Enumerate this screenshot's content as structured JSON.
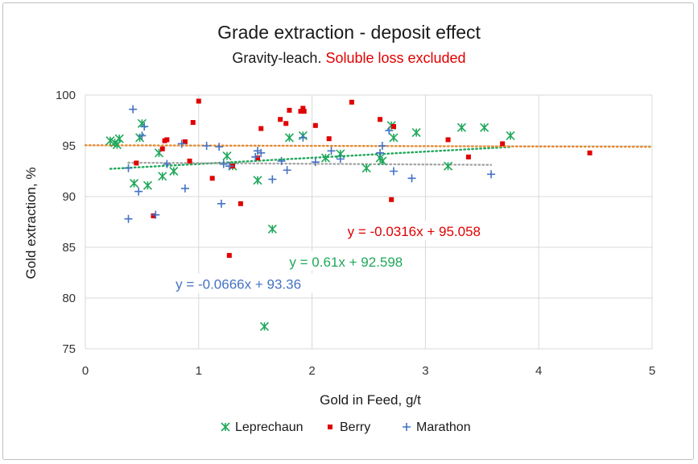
{
  "chart_data": {
    "type": "scatter",
    "title": "Grade extraction - deposit effect",
    "subtitle_prefix": "Gravity-leach. ",
    "subtitle_highlight": "Soluble loss excluded",
    "xlabel": "Gold in Feed, g/t",
    "ylabel": "Gold extraction, %",
    "xlim": [
      0,
      5
    ],
    "ylim": [
      75,
      100
    ],
    "xticks": [
      0,
      1,
      2,
      3,
      4,
      5
    ],
    "yticks": [
      75,
      80,
      85,
      90,
      95,
      100
    ],
    "grid": true,
    "legend_position": "bottom",
    "series": [
      {
        "name": "Leprechaun",
        "marker": "asterisk",
        "color": "#1fa85a",
        "points": [
          [
            0.22,
            95.5
          ],
          [
            0.26,
            95.3
          ],
          [
            0.28,
            95.1
          ],
          [
            0.3,
            95.7
          ],
          [
            0.43,
            91.3
          ],
          [
            0.48,
            95.8
          ],
          [
            0.5,
            97.2
          ],
          [
            0.55,
            91.1
          ],
          [
            0.65,
            94.3
          ],
          [
            0.68,
            92.0
          ],
          [
            0.78,
            92.5
          ],
          [
            1.25,
            94.0
          ],
          [
            1.3,
            93.0
          ],
          [
            1.52,
            91.6
          ],
          [
            1.58,
            77.2
          ],
          [
            1.65,
            86.8
          ],
          [
            1.8,
            95.8
          ],
          [
            1.92,
            96.0
          ],
          [
            2.12,
            93.8
          ],
          [
            2.25,
            94.2
          ],
          [
            2.48,
            92.8
          ],
          [
            2.6,
            93.8
          ],
          [
            2.62,
            93.5
          ],
          [
            2.7,
            97.0
          ],
          [
            2.72,
            95.8
          ],
          [
            2.92,
            96.3
          ],
          [
            3.2,
            93.0
          ],
          [
            3.32,
            96.8
          ],
          [
            3.52,
            96.8
          ],
          [
            3.75,
            96.0
          ]
        ],
        "trendline": {
          "equation": "y = 0.61x + 92.598",
          "slope": 0.61,
          "intercept": 92.598,
          "x_range": [
            0.22,
            3.75
          ],
          "color": "#1fa85a"
        }
      },
      {
        "name": "Berry",
        "marker": "square",
        "color": "#e00000",
        "points": [
          [
            0.45,
            93.3
          ],
          [
            0.6,
            88.1
          ],
          [
            0.68,
            94.7
          ],
          [
            0.7,
            95.5
          ],
          [
            0.72,
            95.6
          ],
          [
            0.88,
            95.4
          ],
          [
            0.92,
            93.5
          ],
          [
            0.95,
            97.3
          ],
          [
            1.0,
            99.4
          ],
          [
            1.12,
            91.8
          ],
          [
            1.27,
            84.2
          ],
          [
            1.3,
            93.0
          ],
          [
            1.37,
            89.3
          ],
          [
            1.52,
            93.8
          ],
          [
            1.55,
            96.7
          ],
          [
            1.72,
            97.6
          ],
          [
            1.77,
            97.2
          ],
          [
            1.8,
            98.5
          ],
          [
            1.9,
            98.4
          ],
          [
            1.92,
            98.7
          ],
          [
            1.93,
            98.4
          ],
          [
            2.03,
            97.0
          ],
          [
            2.15,
            95.7
          ],
          [
            2.35,
            99.3
          ],
          [
            2.6,
            97.6
          ],
          [
            2.7,
            89.7
          ],
          [
            2.72,
            96.9
          ],
          [
            3.2,
            95.6
          ],
          [
            3.38,
            93.9
          ],
          [
            3.68,
            95.2
          ],
          [
            4.45,
            94.3
          ]
        ],
        "trendline": {
          "equation": "y = -0.0316x + 95.058",
          "slope": -0.0316,
          "intercept": 95.058,
          "x_range": [
            0,
            5
          ],
          "color": "#e58a2e"
        }
      },
      {
        "name": "Marathon",
        "marker": "plus",
        "color": "#4472c4",
        "points": [
          [
            0.38,
            87.8
          ],
          [
            0.38,
            92.8
          ],
          [
            0.42,
            98.6
          ],
          [
            0.47,
            90.5
          ],
          [
            0.5,
            96.0
          ],
          [
            0.52,
            96.9
          ],
          [
            0.62,
            88.2
          ],
          [
            0.72,
            93.2
          ],
          [
            0.85,
            95.2
          ],
          [
            0.88,
            90.8
          ],
          [
            1.07,
            95.0
          ],
          [
            1.18,
            94.9
          ],
          [
            1.2,
            89.3
          ],
          [
            1.22,
            93.2
          ],
          [
            1.27,
            93.0
          ],
          [
            1.5,
            93.9
          ],
          [
            1.52,
            94.5
          ],
          [
            1.55,
            94.3
          ],
          [
            1.65,
            91.7
          ],
          [
            1.73,
            93.5
          ],
          [
            1.78,
            92.6
          ],
          [
            1.92,
            95.8
          ],
          [
            2.03,
            93.4
          ],
          [
            2.17,
            94.5
          ],
          [
            2.25,
            93.7
          ],
          [
            2.6,
            94.3
          ],
          [
            2.62,
            95.0
          ],
          [
            2.68,
            96.5
          ],
          [
            2.72,
            92.5
          ],
          [
            2.88,
            91.8
          ],
          [
            3.58,
            92.2
          ]
        ],
        "trendline": {
          "equation": "y = -0.0666x + 93.36",
          "slope": -0.0666,
          "intercept": 93.36,
          "x_range": [
            0.38,
            3.58
          ],
          "color": "#a6a6a6"
        }
      }
    ]
  }
}
